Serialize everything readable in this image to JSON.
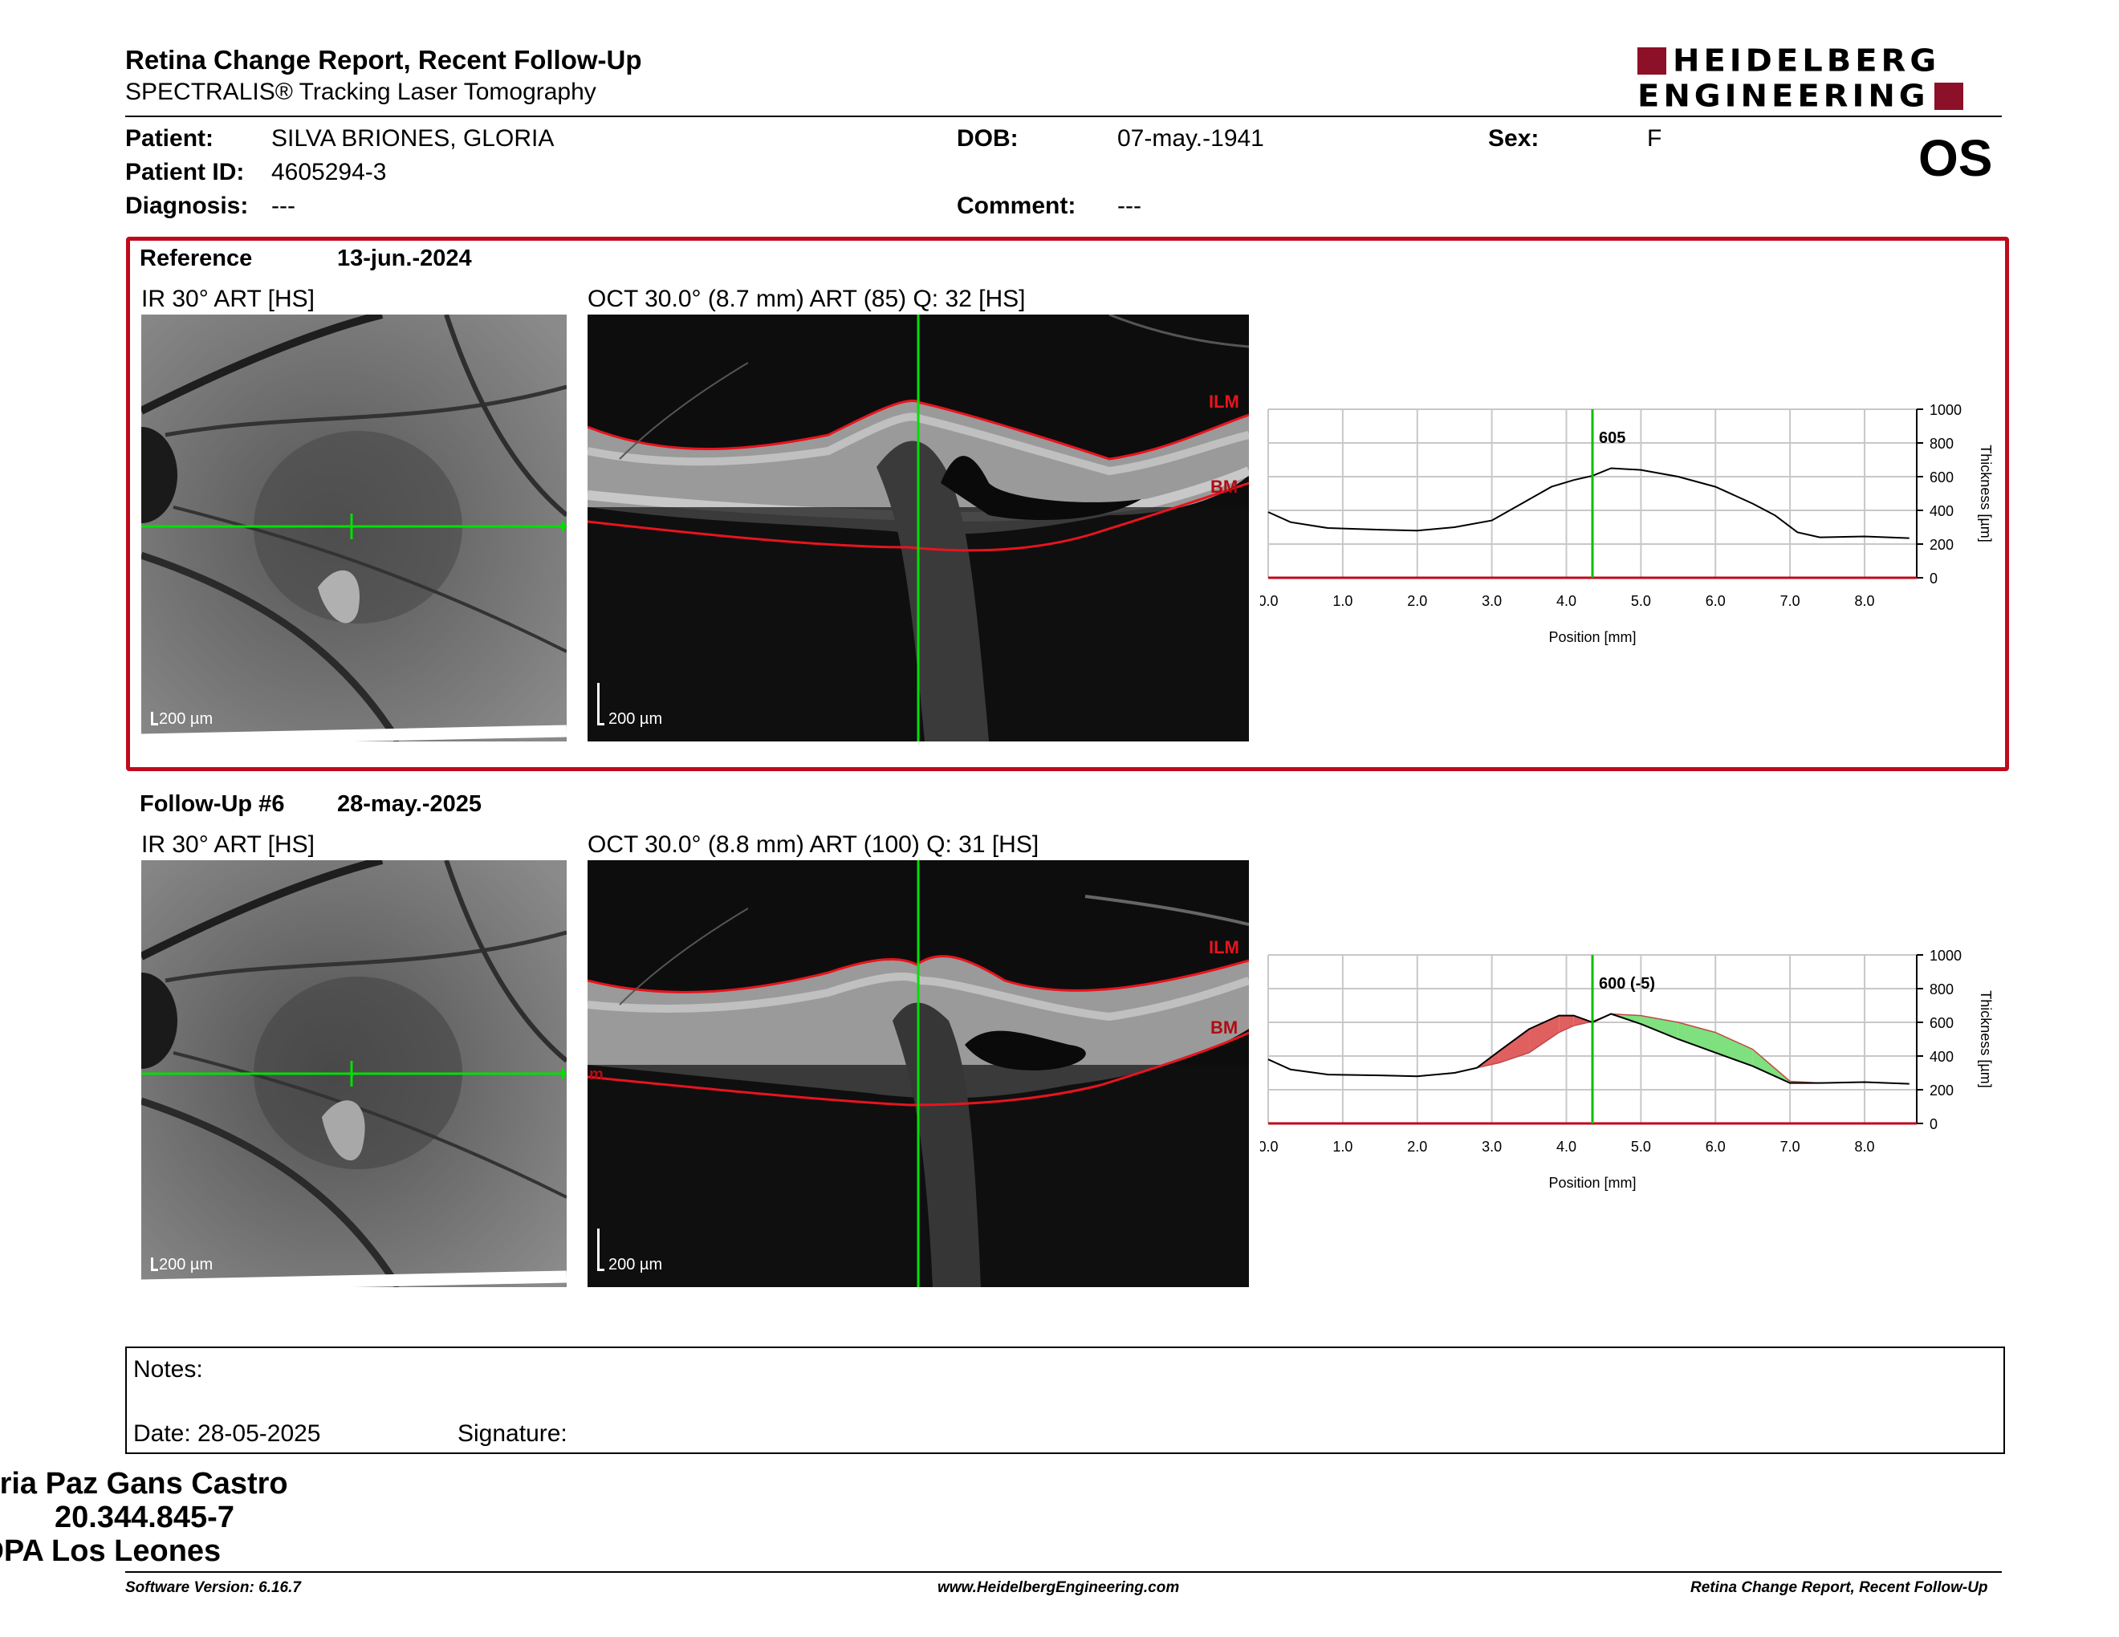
{
  "header": {
    "title": "Retina Change Report, Recent Follow-Up",
    "subtitle": "SPECTRALIS® Tracking Laser Tomography",
    "logo_line1": "HEIDELBERG",
    "logo_line2": "ENGINEERING",
    "eye": "OS"
  },
  "patient": {
    "name_label": "Patient:",
    "name": "SILVA BRIONES, GLORIA",
    "id_label": "Patient ID:",
    "id": "4605294-3",
    "diagnosis_label": "Diagnosis:",
    "diagnosis": "---",
    "dob_label": "DOB:",
    "dob": "07-may.-1941",
    "comment_label": "Comment:",
    "comment": "---",
    "sex_label": "Sex:",
    "sex": "F"
  },
  "colors": {
    "frame_red": "#c00a1c",
    "brand": "#8c1027",
    "scan_line": "#00e000",
    "ilm_bm": "#e8141e",
    "increase": "#e06060",
    "decrease": "#7ee07e"
  },
  "reference": {
    "label": "Reference",
    "date": "13-jun.-2024",
    "ir_label": "IR 30° ART [HS]",
    "oct_label": "OCT 30.0° (8.7 mm) ART (85) Q: 32 [HS]",
    "ir_scale": "200 µm",
    "oct_scale": "200 µm",
    "ilm": "ILM",
    "bm": "BM"
  },
  "followup": {
    "label": "Follow-Up #6",
    "date": "28-may.-2025",
    "ir_label": "IR 30° ART [HS]",
    "oct_label": "OCT 30.0° (8.8 mm) ART (100) Q: 31 [HS]",
    "ir_scale": "200 µm",
    "oct_scale": "200 µm",
    "ilm": "ILM",
    "bm": "BM",
    "bm_left": "m"
  },
  "chart_data": [
    {
      "type": "line",
      "xlabel": "Position [mm]",
      "ylabel": "Thickness [µm]",
      "xlim": [
        0,
        8.7
      ],
      "ylim": [
        0,
        1000
      ],
      "xticks": [
        "0.0",
        "1.0",
        "2.0",
        "3.0",
        "4.0",
        "5.0",
        "6.0",
        "7.0",
        "8.0"
      ],
      "yticks": [
        "0",
        "200",
        "400",
        "600",
        "800",
        "1000"
      ],
      "grid": true,
      "marker_x": 4.35,
      "marker_label": "605",
      "series": [
        {
          "x": [
            0,
            0.3,
            0.8,
            1.5,
            2.0,
            2.5,
            3.0,
            3.4,
            3.8,
            4.1,
            4.35,
            4.6,
            5.0,
            5.5,
            6.0,
            6.5,
            6.8,
            7.1,
            7.4,
            8.0,
            8.6
          ],
          "values": [
            390,
            330,
            295,
            285,
            280,
            300,
            340,
            440,
            540,
            580,
            605,
            650,
            640,
            600,
            540,
            440,
            370,
            270,
            240,
            245,
            235
          ]
        }
      ]
    },
    {
      "type": "area",
      "xlabel": "Position [mm]",
      "ylabel": "Thickness [µm]",
      "xlim": [
        0,
        8.7
      ],
      "ylim": [
        0,
        1000
      ],
      "xticks": [
        "0.0",
        "1.0",
        "2.0",
        "3.0",
        "4.0",
        "5.0",
        "6.0",
        "7.0",
        "8.0"
      ],
      "yticks": [
        "0",
        "200",
        "400",
        "600",
        "800",
        "1000"
      ],
      "grid": true,
      "marker_x": 4.35,
      "marker_label": "600 (-5)",
      "series": [
        {
          "x": [
            0,
            0.3,
            0.8,
            1.5,
            2.0,
            2.5,
            2.8,
            3.1,
            3.5,
            3.9,
            4.1,
            4.35,
            4.6,
            5.0,
            5.5,
            6.0,
            6.5,
            7.0,
            7.4,
            8.0,
            8.6
          ],
          "values": [
            380,
            320,
            290,
            285,
            280,
            300,
            330,
            430,
            560,
            640,
            640,
            600,
            650,
            590,
            500,
            420,
            340,
            240,
            240,
            245,
            235
          ]
        },
        {
          "x": [
            0,
            0.3,
            0.8,
            1.5,
            2.0,
            2.5,
            2.8,
            3.1,
            3.5,
            3.9,
            4.1,
            4.35,
            4.6,
            5.0,
            5.5,
            6.0,
            6.5,
            7.0,
            7.4,
            8.0,
            8.6
          ],
          "values": [
            380,
            320,
            290,
            285,
            280,
            300,
            330,
            360,
            420,
            540,
            580,
            605,
            650,
            640,
            600,
            540,
            440,
            250,
            240,
            245,
            235
          ]
        }
      ]
    }
  ],
  "notes": {
    "notes_label": "Notes:",
    "date_label": "Date: 28-05-2025",
    "signature_label": "Signature:"
  },
  "signer": {
    "name": "TM Maria Paz Gans Castro",
    "rut": "20.344.845-7",
    "institution": "IOPA Los Leones"
  },
  "footer": {
    "version": "Software Version: 6.16.7",
    "website": "www.HeidelbergEngineering.com",
    "report": "Retina Change Report, Recent Follow-Up"
  }
}
